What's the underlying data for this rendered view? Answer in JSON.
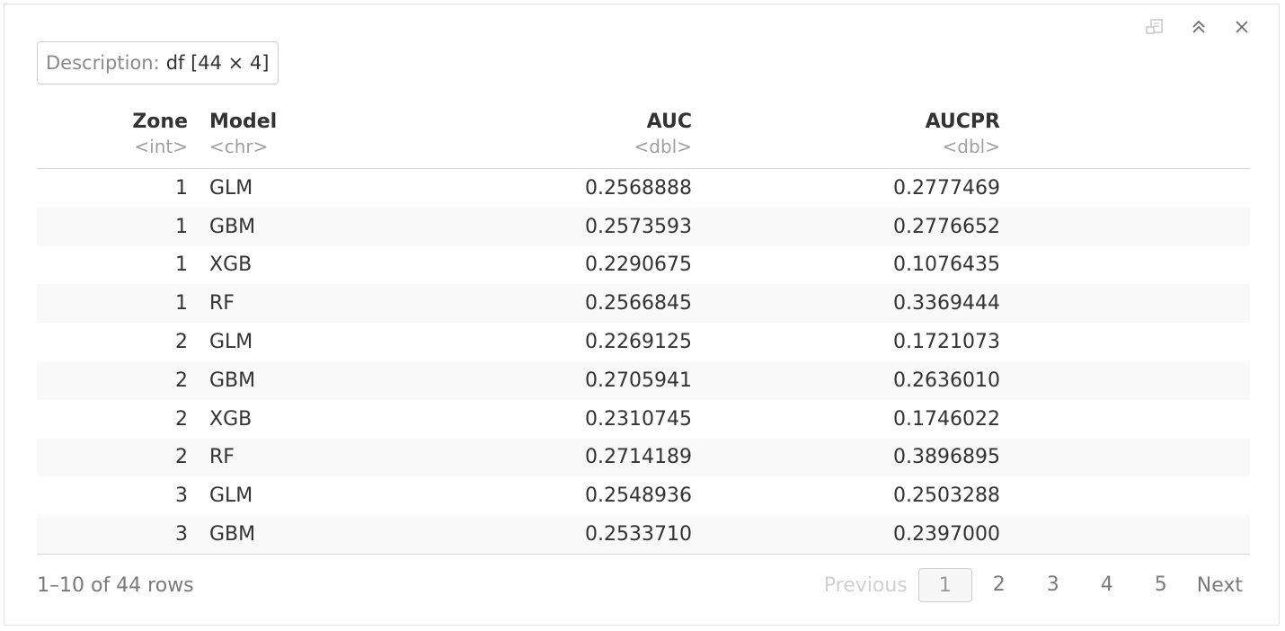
{
  "description": {
    "label": "Description:",
    "value": "df [44 × 4]"
  },
  "toolbar": {
    "icons": [
      "export-icon",
      "collapse-icon",
      "close-icon"
    ]
  },
  "table": {
    "columns": [
      {
        "name": "Zone",
        "type": "<int>"
      },
      {
        "name": "Model",
        "type": "<chr>"
      },
      {
        "name": "AUC",
        "type": "<dbl>"
      },
      {
        "name": "AUCPR",
        "type": "<dbl>"
      }
    ],
    "rows": [
      [
        "1",
        "GLM",
        "0.2568888",
        "0.2777469"
      ],
      [
        "1",
        "GBM",
        "0.2573593",
        "0.2776652"
      ],
      [
        "1",
        "XGB",
        "0.2290675",
        "0.1076435"
      ],
      [
        "1",
        "RF",
        "0.2566845",
        "0.3369444"
      ],
      [
        "2",
        "GLM",
        "0.2269125",
        "0.1721073"
      ],
      [
        "2",
        "GBM",
        "0.2705941",
        "0.2636010"
      ],
      [
        "2",
        "XGB",
        "0.2310745",
        "0.1746022"
      ],
      [
        "2",
        "RF",
        "0.2714189",
        "0.3896895"
      ],
      [
        "3",
        "GLM",
        "0.2548936",
        "0.2503288"
      ],
      [
        "3",
        "GBM",
        "0.2533710",
        "0.2397000"
      ]
    ]
  },
  "footer": {
    "row_info": "1–10 of 44 rows",
    "previous": "Previous",
    "pages": [
      "1",
      "2",
      "3",
      "4",
      "5"
    ],
    "active_page": "1",
    "next": "Next"
  },
  "colors": {
    "text": "#333333",
    "muted": "#a0a0a0",
    "stripe": "#f9f9f9",
    "border": "#d6d6d6"
  }
}
